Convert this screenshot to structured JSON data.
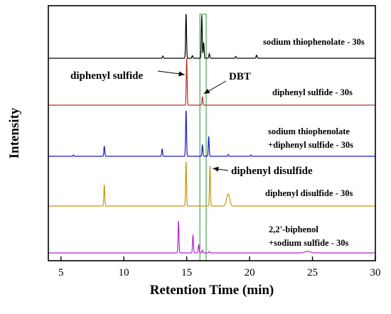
{
  "chart_data": {
    "type": "line",
    "title": "",
    "xlabel": "Retention Time (min)",
    "ylabel": "Intensity",
    "xlim": [
      4,
      30
    ],
    "xticks": [
      5,
      10,
      15,
      20,
      25,
      30
    ],
    "y_ticks_shown": false,
    "grid": false,
    "legend": "none; each trace labelled with text at right",
    "highlight_band": {
      "x": [
        16.05,
        16.55
      ],
      "color": "#4aa55a"
    },
    "annotations": [
      {
        "text": "diphenyl sulfide",
        "points_to_x": 15.0,
        "series_index": 1
      },
      {
        "text": "DBT",
        "points_to_x": 16.25,
        "series_index": 1
      },
      {
        "text": "diphenyl disulfide",
        "points_to_x": 16.85,
        "series_index": 3
      }
    ],
    "series": [
      {
        "name": "sodium thiophenolate - 30s",
        "label_lines": [
          "sodium thiophenolate - 30s"
        ],
        "color": "#000000",
        "peaks": [
          {
            "x": 13.1,
            "h": 0.05
          },
          {
            "x": 14.95,
            "h": 1.0
          },
          {
            "x": 15.45,
            "h": 0.06
          },
          {
            "x": 16.2,
            "h": 0.95
          },
          {
            "x": 16.35,
            "h": 0.35
          },
          {
            "x": 16.8,
            "h": 0.1
          },
          {
            "x": 18.9,
            "h": 0.04
          },
          {
            "x": 20.55,
            "h": 0.07
          }
        ]
      },
      {
        "name": "diphenyl sulfide - 30s",
        "label_lines": [
          "diphenyl sulfide - 30s"
        ],
        "color": "#b5311e",
        "peaks": [
          {
            "x": 15.0,
            "h": 1.0
          },
          {
            "x": 16.25,
            "h": 0.18
          }
        ]
      },
      {
        "name": "sodium thiophenolate +diphenyl sulfide - 30s",
        "label_lines": [
          "sodium thiophenolate",
          "+diphenyl sulfide - 30s"
        ],
        "color": "#1a1acc",
        "peaks": [
          {
            "x": 6.0,
            "h": 0.03
          },
          {
            "x": 8.45,
            "h": 0.22
          },
          {
            "x": 13.05,
            "h": 0.16
          },
          {
            "x": 14.95,
            "h": 1.0
          },
          {
            "x": 16.25,
            "h": 0.25
          },
          {
            "x": 16.75,
            "h": 0.43
          },
          {
            "x": 18.3,
            "h": 0.04
          },
          {
            "x": 20.1,
            "h": 0.03
          }
        ]
      },
      {
        "name": "diphenyl disulfide - 30s",
        "label_lines": [
          "diphenyl disulfide - 30s"
        ],
        "color": "#c8950a",
        "peaks": [
          {
            "x": 8.45,
            "h": 0.46
          },
          {
            "x": 14.95,
            "h": 0.97
          },
          {
            "x": 16.85,
            "h": 0.88
          },
          {
            "x": 18.3,
            "h": 0.26,
            "w": 0.12
          }
        ]
      },
      {
        "name": "2,2'-biphenol +sodium sulfide - 30s",
        "label_lines": [
          "2,2'-biphenol",
          "+sodium sulfide - 30s"
        ],
        "color": "#b526d4",
        "peaks": [
          {
            "x": 14.35,
            "h": 1.0
          },
          {
            "x": 15.5,
            "h": 0.56
          },
          {
            "x": 15.95,
            "h": 0.26
          },
          {
            "x": 16.25,
            "h": 0.09
          },
          {
            "x": 16.8,
            "h": 0.04
          },
          {
            "x": 24.6,
            "h": 0.05,
            "w": 0.2
          }
        ]
      }
    ]
  }
}
